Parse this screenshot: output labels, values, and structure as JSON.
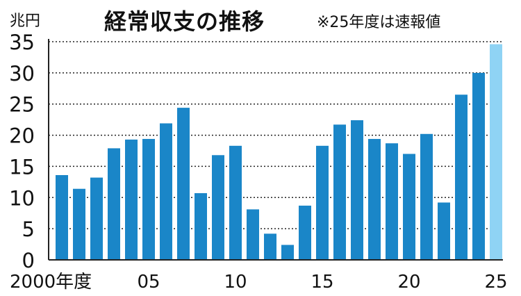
{
  "title": "経常収支の推移",
  "note": "※25年度は速報値",
  "unit": "兆円",
  "colors": {
    "bar": "#1a86c8",
    "bar_preliminary": "#8fd3f4",
    "grid": "#222222",
    "text": "#111111"
  },
  "chart_data": {
    "type": "bar",
    "title": "経常収支の推移",
    "ylabel": "兆円",
    "xlabel": "",
    "ylim": [
      0,
      35
    ],
    "yticks": [
      "0",
      "5",
      "10",
      "15",
      "20",
      "25",
      "30",
      "35"
    ],
    "grid": "horizontal dotted",
    "categories": [
      "2000",
      "2001",
      "2002",
      "2003",
      "2004",
      "2005",
      "2006",
      "2007",
      "2008",
      "2009",
      "2010",
      "2011",
      "2012",
      "2013",
      "2014",
      "2015",
      "2016",
      "2017",
      "2018",
      "2019",
      "2020",
      "2021",
      "2022",
      "2023",
      "2024",
      "2025"
    ],
    "xtick_labels": [
      {
        "index": 0,
        "label": "2000年度"
      },
      {
        "index": 5,
        "label": "05"
      },
      {
        "index": 10,
        "label": "10"
      },
      {
        "index": 15,
        "label": "15"
      },
      {
        "index": 20,
        "label": "20"
      },
      {
        "index": 25,
        "label": "25"
      }
    ],
    "values": [
      13.6,
      11.4,
      13.2,
      17.9,
      19.3,
      19.4,
      21.9,
      24.4,
      10.7,
      16.8,
      18.3,
      8.1,
      4.2,
      2.4,
      8.7,
      18.3,
      21.7,
      22.4,
      19.4,
      18.7,
      17.0,
      20.2,
      9.2,
      26.5,
      30.0,
      34.6
    ],
    "preliminary_index": 25
  }
}
